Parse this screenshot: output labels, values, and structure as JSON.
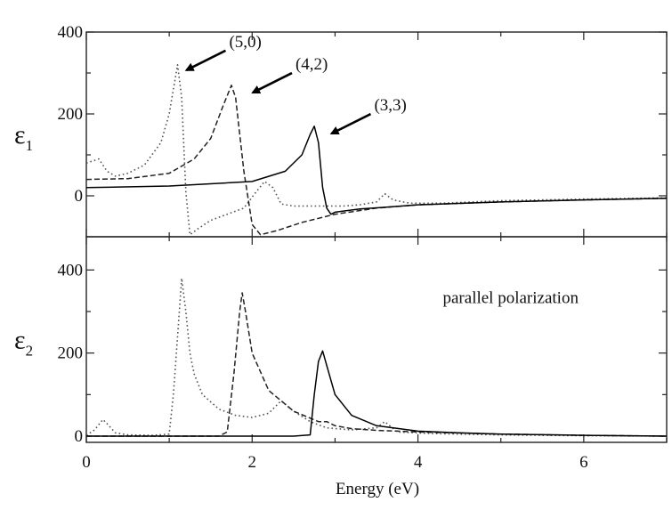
{
  "chart_data": {
    "type": "line",
    "xlabel": "Energy (eV)",
    "xlim": [
      0,
      7
    ],
    "x_ticks": [
      "0",
      "2",
      "4",
      "6"
    ],
    "series_styles": [
      {
        "key": "5,0",
        "dash": "dotted",
        "color": "#555555"
      },
      {
        "key": "4,2",
        "dash": "dashed",
        "color": "#222222"
      },
      {
        "key": "3,3",
        "dash": "solid",
        "color": "#000000"
      }
    ],
    "panels": [
      {
        "id": "top",
        "ylabel_main": "ε",
        "ylabel_sub": "1",
        "ylim": [
          -100,
          400
        ],
        "y_ticks": [
          "0",
          "200",
          "400"
        ],
        "annotations": [
          {
            "text": "(5,0)",
            "x": 1.1,
            "y": 320
          },
          {
            "text": "(4,2)",
            "x": 1.9,
            "y": 265
          },
          {
            "text": "(3,3)",
            "x": 2.85,
            "y": 165
          }
        ],
        "series": [
          {
            "key": "5,0",
            "x": [
              0,
              0.15,
              0.25,
              0.35,
              0.5,
              0.7,
              0.9,
              1.0,
              1.05,
              1.1,
              1.15,
              1.2,
              1.25,
              1.35,
              1.5,
              1.7,
              1.9,
              2.05,
              2.15,
              2.25,
              2.35,
              2.5,
              2.7,
              2.9,
              3.1,
              3.3,
              3.5,
              3.6,
              3.7,
              3.9,
              4.3,
              5,
              6,
              7
            ],
            "y": [
              80,
              90,
              60,
              48,
              55,
              75,
              130,
              200,
              260,
              320,
              240,
              10,
              -95,
              -80,
              -60,
              -45,
              -30,
              10,
              35,
              20,
              -20,
              -25,
              -25,
              -25,
              -25,
              -22,
              -15,
              5,
              -10,
              -18,
              -18,
              -12,
              -8,
              -5
            ]
          },
          {
            "key": "4,2",
            "x": [
              0,
              0.5,
              1.0,
              1.3,
              1.5,
              1.65,
              1.75,
              1.8,
              1.9,
              2.0,
              2.1,
              2.3,
              2.6,
              3.0,
              3.5,
              4,
              5,
              6,
              7
            ],
            "y": [
              40,
              42,
              55,
              90,
              140,
              220,
              270,
              240,
              60,
              -70,
              -95,
              -85,
              -65,
              -45,
              -30,
              -22,
              -15,
              -10,
              -6
            ]
          },
          {
            "key": "3,3",
            "x": [
              0,
              1.0,
              2.0,
              2.4,
              2.6,
              2.7,
              2.75,
              2.8,
              2.85,
              2.9,
              2.95,
              3.0,
              3.3,
              3.6,
              4,
              5,
              6,
              7
            ],
            "y": [
              20,
              24,
              35,
              60,
              100,
              150,
              170,
              130,
              20,
              -30,
              -45,
              -40,
              -32,
              -28,
              -22,
              -15,
              -10,
              -6
            ]
          }
        ]
      },
      {
        "id": "bottom",
        "ylabel_main": "ε",
        "ylabel_sub": "2",
        "ylim": [
          -15,
          480
        ],
        "y_ticks": [
          "0",
          "200",
          "400"
        ],
        "annotations": [
          {
            "text": "parallel polarization",
            "x": 4.3,
            "y": 320
          }
        ],
        "series": [
          {
            "key": "5,0",
            "x": [
              0,
              0.1,
              0.2,
              0.25,
              0.35,
              0.5,
              0.8,
              1.0,
              1.05,
              1.1,
              1.15,
              1.2,
              1.25,
              1.3,
              1.4,
              1.6,
              1.8,
              2.0,
              2.2,
              2.35,
              2.5,
              2.7,
              2.9,
              3.2,
              3.5,
              3.6,
              3.75,
              4.2,
              5,
              6,
              7
            ],
            "y": [
              2,
              15,
              40,
              30,
              8,
              3,
              2,
              5,
              100,
              240,
              380,
              300,
              200,
              150,
              100,
              65,
              50,
              45,
              55,
              85,
              60,
              35,
              20,
              15,
              20,
              35,
              10,
              6,
              3,
              1,
              0
            ]
          },
          {
            "key": "4,2",
            "x": [
              0,
              1.6,
              1.7,
              1.78,
              1.85,
              1.88,
              1.92,
              2.0,
              2.2,
              2.5,
              2.8,
              2.9,
              3.0,
              3.2,
              3.5,
              4,
              5,
              6,
              7
            ],
            "y": [
              0,
              0,
              10,
              150,
              300,
              345,
              300,
              200,
              110,
              60,
              35,
              35,
              25,
              18,
              14,
              10,
              5,
              2,
              0
            ]
          },
          {
            "key": "3,3",
            "x": [
              0,
              2.5,
              2.7,
              2.75,
              2.8,
              2.85,
              2.9,
              3.0,
              3.2,
              3.5,
              4,
              4.5,
              5,
              6,
              7
            ],
            "y": [
              0,
              0,
              3,
              100,
              180,
              205,
              170,
              100,
              50,
              25,
              12,
              8,
              5,
              2,
              0
            ]
          }
        ]
      }
    ]
  }
}
